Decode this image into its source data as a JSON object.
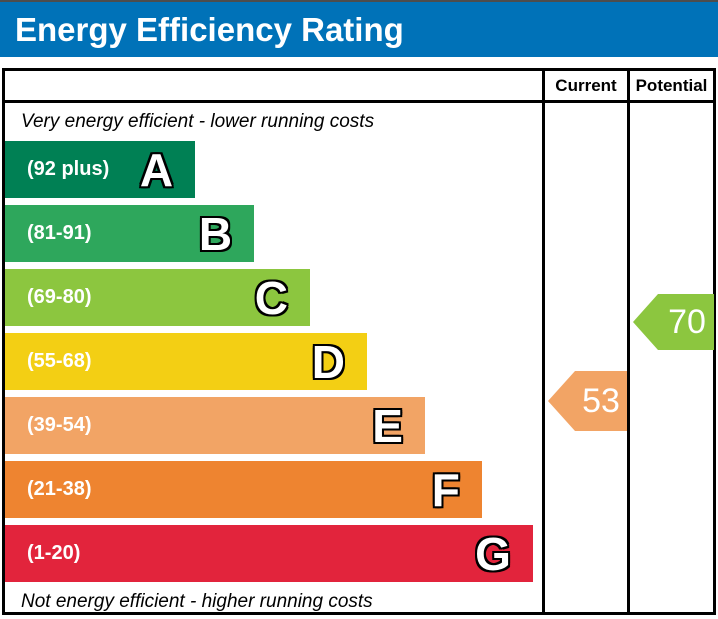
{
  "header": {
    "title": "Energy Efficiency Rating"
  },
  "table": {
    "columns": [
      {
        "label": "Current"
      },
      {
        "label": "Potential"
      }
    ],
    "top_note": "Very energy efficient - lower running costs",
    "bottom_note": "Not energy efficient - higher running costs",
    "bands": [
      {
        "letter": "A",
        "range": "(92 plus)",
        "color": "#008054",
        "width_pct": 35.4
      },
      {
        "letter": "B",
        "range": "(81-91)",
        "color": "#2ea75c",
        "width_pct": 46.4
      },
      {
        "letter": "C",
        "range": "(69-80)",
        "color": "#8cc63f",
        "width_pct": 56.8
      },
      {
        "letter": "D",
        "range": "(55-68)",
        "color": "#f3cf14",
        "width_pct": 67.4
      },
      {
        "letter": "E",
        "range": "(39-54)",
        "color": "#f2a465",
        "width_pct": 78.2
      },
      {
        "letter": "F",
        "range": "(21-38)",
        "color": "#ee8430",
        "width_pct": 88.8
      },
      {
        "letter": "G",
        "range": "(1-20)",
        "color": "#e2243c",
        "width_pct": 98.3
      }
    ],
    "current": {
      "value": "53",
      "band": "E",
      "color": "#f2a465"
    },
    "potential": {
      "value": "70",
      "band": "C",
      "color": "#8cc63f"
    }
  },
  "colors": {
    "header_bg": "#0072b8",
    "border": "#000000",
    "page_bg": "#ffffff"
  },
  "chart_data": {
    "type": "bar",
    "title": "Energy Efficiency Rating",
    "orientation": "horizontal",
    "bands": [
      {
        "label": "A",
        "range_text": "(92 plus)",
        "range_min": 92,
        "range_max": 100,
        "color": "#008054",
        "bar_length_pct": 35.4
      },
      {
        "label": "B",
        "range_text": "(81-91)",
        "range_min": 81,
        "range_max": 91,
        "color": "#2ea75c",
        "bar_length_pct": 46.4
      },
      {
        "label": "C",
        "range_text": "(69-80)",
        "range_min": 69,
        "range_max": 80,
        "color": "#8cc63f",
        "bar_length_pct": 56.8
      },
      {
        "label": "D",
        "range_text": "(55-68)",
        "range_min": 55,
        "range_max": 68,
        "color": "#f3cf14",
        "bar_length_pct": 67.4
      },
      {
        "label": "E",
        "range_text": "(39-54)",
        "range_min": 39,
        "range_max": 54,
        "color": "#f2a465",
        "bar_length_pct": 78.2
      },
      {
        "label": "F",
        "range_text": "(21-38)",
        "range_min": 21,
        "range_max": 38,
        "color": "#ee8430",
        "bar_length_pct": 88.8
      },
      {
        "label": "G",
        "range_text": "(1-20)",
        "range_min": 1,
        "range_max": 20,
        "color": "#e2243c",
        "bar_length_pct": 98.3
      }
    ],
    "markers": [
      {
        "name": "Current",
        "value": 53,
        "band": "E",
        "color": "#f2a465"
      },
      {
        "name": "Potential",
        "value": 70,
        "band": "C",
        "color": "#8cc63f"
      }
    ],
    "annotations": [
      "Very energy efficient - lower running costs",
      "Not energy efficient - higher running costs"
    ],
    "legend_position": "none",
    "grid": false
  }
}
